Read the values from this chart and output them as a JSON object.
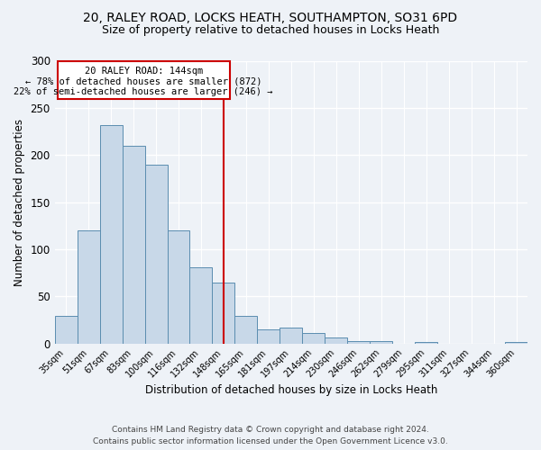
{
  "title1": "20, RALEY ROAD, LOCKS HEATH, SOUTHAMPTON, SO31 6PD",
  "title2": "Size of property relative to detached houses in Locks Heath",
  "xlabel": "Distribution of detached houses by size in Locks Heath",
  "ylabel": "Number of detached properties",
  "categories": [
    "35sqm",
    "51sqm",
    "67sqm",
    "83sqm",
    "100sqm",
    "116sqm",
    "132sqm",
    "148sqm",
    "165sqm",
    "181sqm",
    "197sqm",
    "214sqm",
    "230sqm",
    "246sqm",
    "262sqm",
    "279sqm",
    "295sqm",
    "311sqm",
    "327sqm",
    "344sqm",
    "360sqm"
  ],
  "bar_values": [
    29,
    120,
    232,
    210,
    190,
    120,
    81,
    65,
    29,
    15,
    17,
    11,
    6,
    3,
    3,
    0,
    2,
    0,
    0,
    0,
    2
  ],
  "bar_color": "#c8d8e8",
  "bar_edgecolor": "#5b8db0",
  "vline_x_index": 7,
  "vline_color": "#cc0000",
  "annotation_title": "20 RALEY ROAD: 144sqm",
  "annotation_line1": "← 78% of detached houses are smaller (872)",
  "annotation_line2": "22% of semi-detached houses are larger (246) →",
  "annotation_box_color": "#cc0000",
  "ylim": [
    0,
    300
  ],
  "yticks": [
    0,
    50,
    100,
    150,
    200,
    250,
    300
  ],
  "footer1": "Contains HM Land Registry data © Crown copyright and database right 2024.",
  "footer2": "Contains public sector information licensed under the Open Government Licence v3.0.",
  "bg_color": "#eef2f7",
  "grid_color": "#ffffff",
  "title1_fontsize": 10,
  "title2_fontsize": 9
}
